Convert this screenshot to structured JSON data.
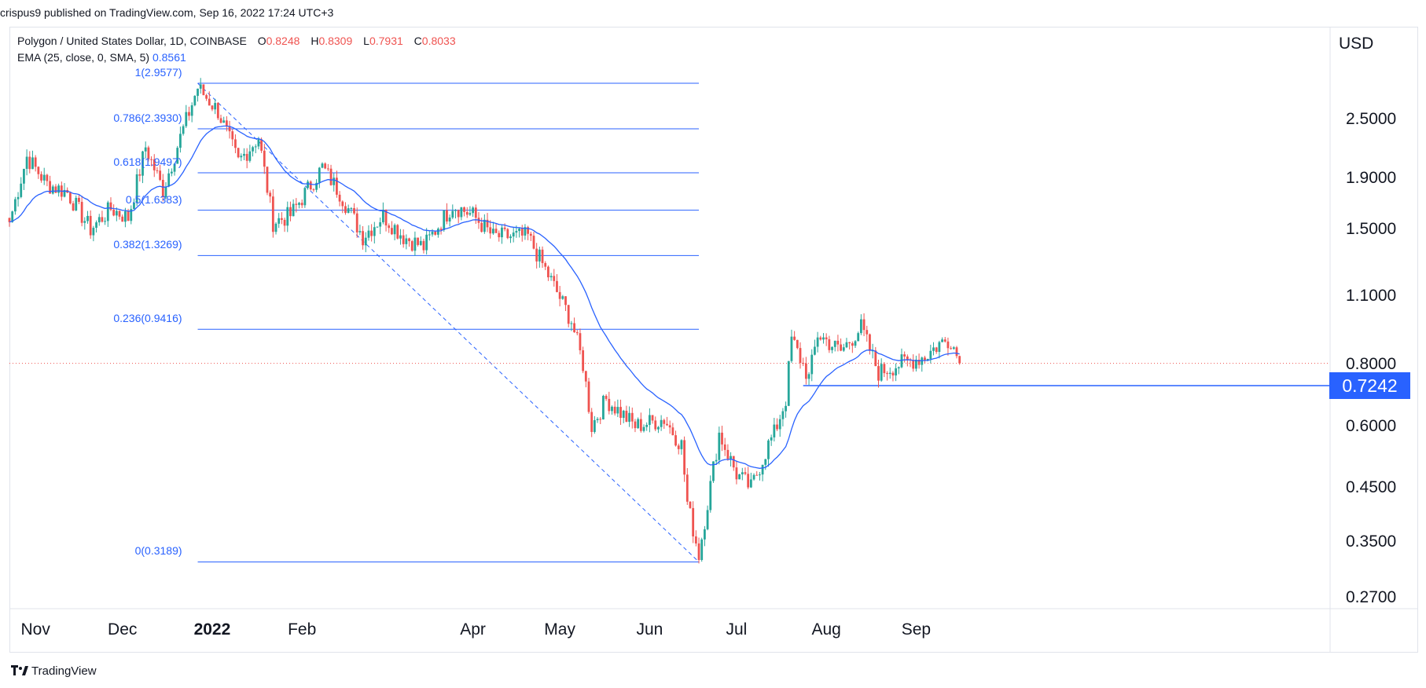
{
  "header": {
    "published": "crispus9 published on TradingView.com, Sep 16, 2022 17:24 UTC+3"
  },
  "legend": {
    "symbol": "Polygon / United States Dollar, 1D, COINBASE",
    "o_label": "O",
    "o": "0.8248",
    "h_label": "H",
    "h": "0.8309",
    "l_label": "L",
    "l": "0.7931",
    "c_label": "C",
    "c": "0.8033",
    "ema_label": "EMA (25, close, 0, SMA, 5)",
    "ema_value": "0.8561"
  },
  "axis": {
    "currency": "USD",
    "y_ticks": [
      "2.5000",
      "1.9000",
      "1.5000",
      "1.1000",
      "0.8000",
      "0.6000",
      "0.4500",
      "0.3500",
      "0.2700"
    ],
    "x_ticks": [
      "Nov",
      "Dec",
      "2022",
      "Feb",
      "Apr",
      "May",
      "Jun",
      "Jul",
      "Aug",
      "Sep"
    ]
  },
  "price_tag": "0.7242",
  "footer": {
    "brand": "TradingView"
  },
  "colors": {
    "up": "#26a69a",
    "down": "#ef5350",
    "ema": "#2962ff",
    "fib": "#2962ff"
  },
  "chart_data": {
    "type": "candlestick",
    "scale": "log",
    "ylim": [
      0.25,
      4.0
    ],
    "last_close": 0.8033,
    "price_line": 0.7242,
    "fibonacci": [
      {
        "label": "1(2.9577)",
        "value": 2.9577
      },
      {
        "label": "0.786(2.3930)",
        "value": 2.393
      },
      {
        "label": "0.618(1.9497)",
        "value": 1.9497
      },
      {
        "label": "0.5(1.6383)",
        "value": 1.6383
      },
      {
        "label": "0.382(1.3269)",
        "value": 1.3269
      },
      {
        "label": "0.236(0.9416)",
        "value": 0.9416
      },
      {
        "label": "0(0.3189)",
        "value": 0.3189
      }
    ],
    "trend_line": {
      "from": [
        "2021-12-27",
        2.9577
      ],
      "to": [
        "2022-06-18",
        0.3189
      ]
    },
    "date_range": [
      "2021-10-23",
      "2022-09-16"
    ],
    "close_keyframes": [
      [
        "2021-10-23",
        1.55
      ],
      [
        "2021-10-29",
        2.1
      ],
      [
        "2021-11-05",
        1.85
      ],
      [
        "2021-11-12",
        1.78
      ],
      [
        "2021-11-20",
        1.5
      ],
      [
        "2021-11-27",
        1.65
      ],
      [
        "2021-12-03",
        1.58
      ],
      [
        "2021-12-09",
        2.2
      ],
      [
        "2021-12-15",
        1.8
      ],
      [
        "2021-12-21",
        2.3
      ],
      [
        "2021-12-27",
        2.9
      ],
      [
        "2022-01-03",
        2.6
      ],
      [
        "2022-01-10",
        2.05
      ],
      [
        "2022-01-17",
        2.3
      ],
      [
        "2022-01-22",
        1.55
      ],
      [
        "2022-01-28",
        1.6
      ],
      [
        "2022-02-08",
        2.0
      ],
      [
        "2022-02-14",
        1.78
      ],
      [
        "2022-02-22",
        1.45
      ],
      [
        "2022-03-01",
        1.6
      ],
      [
        "2022-03-08",
        1.45
      ],
      [
        "2022-03-15",
        1.38
      ],
      [
        "2022-03-25",
        1.68
      ],
      [
        "2022-04-01",
        1.6
      ],
      [
        "2022-04-08",
        1.45
      ],
      [
        "2022-04-20",
        1.45
      ],
      [
        "2022-04-28",
        1.18
      ],
      [
        "2022-05-05",
        0.98
      ],
      [
        "2022-05-09",
        0.8
      ],
      [
        "2022-05-12",
        0.6
      ],
      [
        "2022-05-17",
        0.68
      ],
      [
        "2022-05-27",
        0.6
      ],
      [
        "2022-06-06",
        0.62
      ],
      [
        "2022-06-12",
        0.55
      ],
      [
        "2022-06-14",
        0.42
      ],
      [
        "2022-06-18",
        0.33
      ],
      [
        "2022-06-21",
        0.42
      ],
      [
        "2022-06-25",
        0.58
      ],
      [
        "2022-07-01",
        0.48
      ],
      [
        "2022-07-06",
        0.45
      ],
      [
        "2022-07-12",
        0.55
      ],
      [
        "2022-07-14",
        0.58
      ],
      [
        "2022-07-18",
        0.68
      ],
      [
        "2022-07-20",
        0.9
      ],
      [
        "2022-07-26",
        0.75
      ],
      [
        "2022-07-29",
        0.92
      ],
      [
        "2022-08-06",
        0.85
      ],
      [
        "2022-08-13",
        0.95
      ],
      [
        "2022-08-19",
        0.77
      ],
      [
        "2022-08-26",
        0.8
      ],
      [
        "2022-09-04",
        0.83
      ],
      [
        "2022-09-09",
        0.88
      ],
      [
        "2022-09-13",
        0.9
      ],
      [
        "2022-09-16",
        0.8033
      ]
    ]
  }
}
